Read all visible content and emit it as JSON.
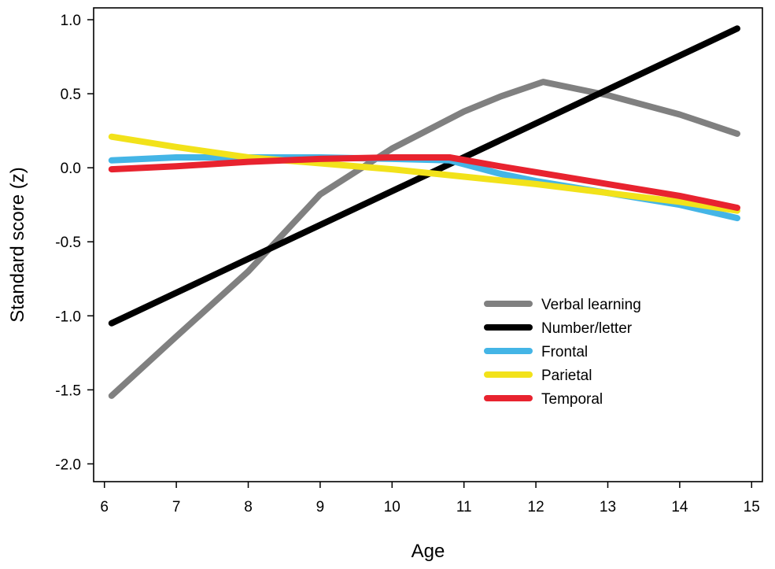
{
  "chart_data": {
    "type": "line",
    "title": "",
    "xlabel": "Age",
    "ylabel": "Standard score (z)",
    "xlim": [
      6,
      15
    ],
    "ylim": [
      -2.0,
      1.0
    ],
    "xticks": [
      6,
      7,
      8,
      9,
      10,
      11,
      12,
      13,
      14,
      15
    ],
    "xtick_labels": [
      "6",
      "7",
      "8",
      "9",
      "10",
      "11",
      "12",
      "13",
      "14",
      "15"
    ],
    "yticks": [
      1.0,
      0.5,
      0.0,
      -0.5,
      -1.0,
      -1.5,
      -2.0
    ],
    "ytick_labels": [
      "1.0",
      "0.5",
      "0.0",
      "-0.5",
      "-1.0",
      "-1.5",
      "-2.0"
    ],
    "grid": false,
    "legend_position": "bottom-right",
    "series": [
      {
        "name": "Verbal learning",
        "color": "#808080",
        "points": [
          [
            6.1,
            -1.54
          ],
          [
            7,
            -1.14
          ],
          [
            8,
            -0.7
          ],
          [
            9,
            -0.18
          ],
          [
            10,
            0.13
          ],
          [
            11,
            0.38
          ],
          [
            11.5,
            0.48
          ],
          [
            12.1,
            0.58
          ],
          [
            13,
            0.49
          ],
          [
            14,
            0.36
          ],
          [
            14.8,
            0.23
          ]
        ]
      },
      {
        "name": "Number/letter",
        "color": "#000000",
        "points": [
          [
            6.1,
            -1.05
          ],
          [
            14.8,
            0.94
          ]
        ]
      },
      {
        "name": "Frontal",
        "color": "#44b5e6",
        "points": [
          [
            6.1,
            0.05
          ],
          [
            7,
            0.07
          ],
          [
            8,
            0.07
          ],
          [
            9,
            0.07
          ],
          [
            10,
            0.06
          ],
          [
            10.8,
            0.05
          ],
          [
            11.5,
            -0.04
          ],
          [
            12,
            -0.09
          ],
          [
            13,
            -0.17
          ],
          [
            14,
            -0.25
          ],
          [
            14.8,
            -0.34
          ]
        ]
      },
      {
        "name": "Parietal",
        "color": "#f2e21a",
        "points": [
          [
            6.1,
            0.21
          ],
          [
            7,
            0.14
          ],
          [
            8,
            0.07
          ],
          [
            9,
            0.03
          ],
          [
            10,
            -0.01
          ],
          [
            11,
            -0.06
          ],
          [
            12,
            -0.11
          ],
          [
            13,
            -0.17
          ],
          [
            14,
            -0.23
          ],
          [
            14.8,
            -0.29
          ]
        ]
      },
      {
        "name": "Temporal",
        "color": "#e8232f",
        "points": [
          [
            6.1,
            -0.01
          ],
          [
            7,
            0.01
          ],
          [
            8,
            0.04
          ],
          [
            9,
            0.06
          ],
          [
            10,
            0.07
          ],
          [
            10.8,
            0.07
          ],
          [
            11.5,
            0.01
          ],
          [
            12,
            -0.03
          ],
          [
            13,
            -0.11
          ],
          [
            14,
            -0.19
          ],
          [
            14.8,
            -0.27
          ]
        ]
      }
    ]
  }
}
